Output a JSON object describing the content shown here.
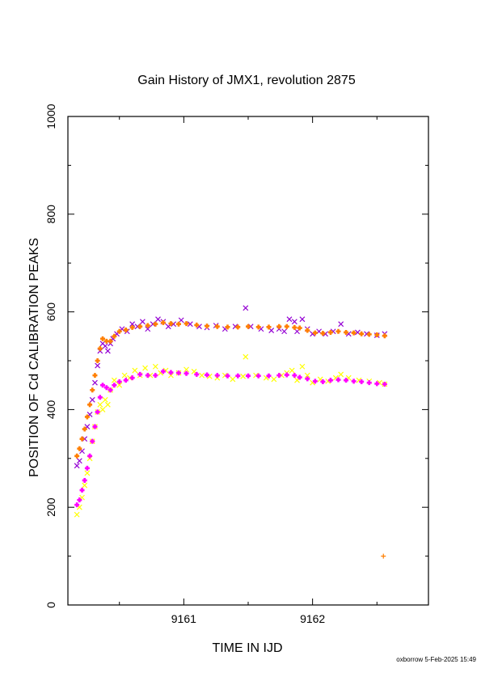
{
  "chart_data": {
    "type": "scatter",
    "title": "Gain History of JMX1, revolution 2875",
    "xlabel": "TIME IN IJD",
    "ylabel": "POSITION OF Cd CALIBRATION PEAKS",
    "xlim": [
      9160.1,
      9162.9
    ],
    "ylim": [
      0,
      1000
    ],
    "x_ticks": [
      9161,
      9162
    ],
    "y_ticks": [
      0,
      200,
      400,
      600,
      800,
      1000
    ],
    "grid": false,
    "series": [
      {
        "color": "#9400d3",
        "marker": "x",
        "points": [
          [
            9160.17,
            285
          ],
          [
            9160.19,
            295
          ],
          [
            9160.21,
            315
          ],
          [
            9160.23,
            340
          ],
          [
            9160.25,
            365
          ],
          [
            9160.27,
            390
          ],
          [
            9160.29,
            420
          ],
          [
            9160.31,
            455
          ],
          [
            9160.33,
            490
          ],
          [
            9160.35,
            520
          ],
          [
            9160.37,
            535
          ],
          [
            9160.39,
            530
          ],
          [
            9160.41,
            520
          ],
          [
            9160.43,
            535
          ],
          [
            9160.45,
            545
          ],
          [
            9160.48,
            555
          ],
          [
            9160.52,
            565
          ],
          [
            9160.56,
            560
          ],
          [
            9160.6,
            575
          ],
          [
            9160.64,
            570
          ],
          [
            9160.68,
            580
          ],
          [
            9160.72,
            565
          ],
          [
            9160.76,
            575
          ],
          [
            9160.8,
            585
          ],
          [
            9160.84,
            580
          ],
          [
            9160.88,
            570
          ],
          [
            9160.92,
            575
          ],
          [
            9160.98,
            583
          ],
          [
            9161.05,
            575
          ],
          [
            9161.12,
            570
          ],
          [
            9161.18,
            568
          ],
          [
            9161.25,
            572
          ],
          [
            9161.32,
            565
          ],
          [
            9161.4,
            570
          ],
          [
            9161.48,
            608
          ],
          [
            9161.52,
            570
          ],
          [
            9161.6,
            565
          ],
          [
            9161.68,
            562
          ],
          [
            9161.74,
            565
          ],
          [
            9161.78,
            560
          ],
          [
            9161.82,
            585
          ],
          [
            9161.86,
            580
          ],
          [
            9161.88,
            560
          ],
          [
            9161.92,
            585
          ],
          [
            9161.96,
            565
          ],
          [
            9162.0,
            555
          ],
          [
            9162.05,
            560
          ],
          [
            9162.1,
            555
          ],
          [
            9162.16,
            560
          ],
          [
            9162.22,
            575
          ],
          [
            9162.28,
            555
          ],
          [
            9162.35,
            558
          ],
          [
            9162.42,
            555
          ],
          [
            9162.5,
            552
          ],
          [
            9162.56,
            555
          ]
        ]
      },
      {
        "color": "#ffff00",
        "marker": "x",
        "points": [
          [
            9160.17,
            185
          ],
          [
            9160.19,
            200
          ],
          [
            9160.21,
            220
          ],
          [
            9160.23,
            245
          ],
          [
            9160.25,
            270
          ],
          [
            9160.27,
            300
          ],
          [
            9160.29,
            335
          ],
          [
            9160.31,
            365
          ],
          [
            9160.33,
            395
          ],
          [
            9160.35,
            410
          ],
          [
            9160.37,
            400
          ],
          [
            9160.39,
            420
          ],
          [
            9160.41,
            410
          ],
          [
            9160.43,
            440
          ],
          [
            9160.46,
            460
          ],
          [
            9160.5,
            450
          ],
          [
            9160.54,
            470
          ],
          [
            9160.58,
            465
          ],
          [
            9160.62,
            480
          ],
          [
            9160.66,
            470
          ],
          [
            9160.7,
            485
          ],
          [
            9160.74,
            470
          ],
          [
            9160.78,
            488
          ],
          [
            9160.82,
            475
          ],
          [
            9160.86,
            480
          ],
          [
            9160.9,
            470
          ],
          [
            9160.96,
            475
          ],
          [
            9161.02,
            482
          ],
          [
            9161.08,
            478
          ],
          [
            9161.14,
            470
          ],
          [
            9161.2,
            468
          ],
          [
            9161.26,
            465
          ],
          [
            9161.32,
            470
          ],
          [
            9161.38,
            462
          ],
          [
            9161.46,
            468
          ],
          [
            9161.48,
            508
          ],
          [
            9161.56,
            470
          ],
          [
            9161.64,
            465
          ],
          [
            9161.7,
            462
          ],
          [
            9161.76,
            470
          ],
          [
            9161.8,
            475
          ],
          [
            9161.84,
            480
          ],
          [
            9161.88,
            460
          ],
          [
            9161.92,
            488
          ],
          [
            9161.96,
            470
          ],
          [
            9162.0,
            455
          ],
          [
            9162.06,
            462
          ],
          [
            9162.12,
            458
          ],
          [
            9162.18,
            465
          ],
          [
            9162.22,
            472
          ],
          [
            9162.28,
            465
          ],
          [
            9162.36,
            460
          ],
          [
            9162.44,
            458
          ],
          [
            9162.52,
            455
          ],
          [
            9162.56,
            452
          ]
        ]
      },
      {
        "color": "#ff7f00",
        "marker": "+",
        "points": [
          [
            9160.17,
            305
          ],
          [
            9160.19,
            320
          ],
          [
            9160.21,
            340
          ],
          [
            9160.23,
            360
          ],
          [
            9160.25,
            385
          ],
          [
            9160.27,
            410
          ],
          [
            9160.29,
            440
          ],
          [
            9160.31,
            470
          ],
          [
            9160.33,
            500
          ],
          [
            9160.35,
            525
          ],
          [
            9160.37,
            545
          ],
          [
            9160.4,
            540
          ],
          [
            9160.43,
            540
          ],
          [
            9160.46,
            550
          ],
          [
            9160.5,
            560
          ],
          [
            9160.55,
            563
          ],
          [
            9160.6,
            568
          ],
          [
            9160.66,
            570
          ],
          [
            9160.72,
            572
          ],
          [
            9160.78,
            575
          ],
          [
            9160.84,
            578
          ],
          [
            9160.9,
            576
          ],
          [
            9160.96,
            575
          ],
          [
            9161.02,
            576
          ],
          [
            9161.1,
            573
          ],
          [
            9161.18,
            571
          ],
          [
            9161.26,
            570
          ],
          [
            9161.34,
            569
          ],
          [
            9161.42,
            569
          ],
          [
            9161.5,
            570
          ],
          [
            9161.58,
            569
          ],
          [
            9161.66,
            569
          ],
          [
            9161.74,
            570
          ],
          [
            9161.8,
            570
          ],
          [
            9161.86,
            568
          ],
          [
            9161.9,
            567
          ],
          [
            9161.96,
            562
          ],
          [
            9162.02,
            557
          ],
          [
            9162.08,
            556
          ],
          [
            9162.14,
            558
          ],
          [
            9162.2,
            560
          ],
          [
            9162.26,
            558
          ],
          [
            9162.32,
            557
          ],
          [
            9162.38,
            555
          ],
          [
            9162.44,
            554
          ],
          [
            9162.5,
            553
          ],
          [
            9162.56,
            551
          ],
          [
            9162.55,
            100
          ]
        ]
      },
      {
        "color": "#ff00ff",
        "marker": "+",
        "points": [
          [
            9160.17,
            205
          ],
          [
            9160.19,
            215
          ],
          [
            9160.21,
            235
          ],
          [
            9160.23,
            255
          ],
          [
            9160.25,
            280
          ],
          [
            9160.27,
            305
          ],
          [
            9160.29,
            335
          ],
          [
            9160.31,
            365
          ],
          [
            9160.33,
            395
          ],
          [
            9160.35,
            425
          ],
          [
            9160.37,
            450
          ],
          [
            9160.4,
            445
          ],
          [
            9160.43,
            440
          ],
          [
            9160.46,
            450
          ],
          [
            9160.5,
            457
          ],
          [
            9160.55,
            460
          ],
          [
            9160.6,
            465
          ],
          [
            9160.66,
            472
          ],
          [
            9160.72,
            470
          ],
          [
            9160.78,
            470
          ],
          [
            9160.84,
            478
          ],
          [
            9160.9,
            476
          ],
          [
            9160.96,
            475
          ],
          [
            9161.02,
            474
          ],
          [
            9161.1,
            472
          ],
          [
            9161.18,
            471
          ],
          [
            9161.26,
            470
          ],
          [
            9161.34,
            469
          ],
          [
            9161.42,
            469
          ],
          [
            9161.5,
            469
          ],
          [
            9161.58,
            469
          ],
          [
            9161.66,
            469
          ],
          [
            9161.74,
            470
          ],
          [
            9161.8,
            471
          ],
          [
            9161.86,
            470
          ],
          [
            9161.9,
            466
          ],
          [
            9161.96,
            463
          ],
          [
            9162.02,
            458
          ],
          [
            9162.08,
            457
          ],
          [
            9162.14,
            460
          ],
          [
            9162.2,
            461
          ],
          [
            9162.26,
            460
          ],
          [
            9162.32,
            458
          ],
          [
            9162.38,
            457
          ],
          [
            9162.44,
            455
          ],
          [
            9162.5,
            453
          ],
          [
            9162.56,
            452
          ]
        ]
      }
    ]
  },
  "footer": {
    "stamp": "oxborrow  5-Feb-2025 15:49"
  }
}
